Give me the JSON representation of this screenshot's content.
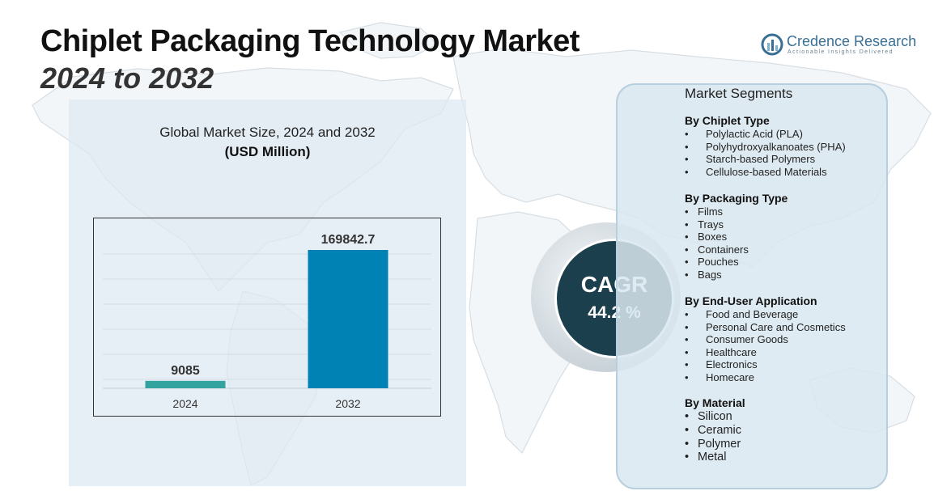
{
  "header": {
    "title": "Chiplet Packaging Technology Market",
    "subtitle": "2024 to 2032"
  },
  "logo": {
    "name": "Credence Research",
    "tagline": "Actionable Insights Delivered"
  },
  "chart_data": {
    "type": "bar",
    "title": "Global Market Size, 2024 and 2032",
    "unit_label": "(USD Million)",
    "categories": [
      "2024",
      "2032"
    ],
    "values": [
      9085,
      169842.7
    ],
    "value_labels": [
      "9085",
      "169842.7"
    ],
    "bar_colors": [
      "#33a3a0",
      "#0082b4"
    ],
    "grid": true,
    "xlabel": "",
    "ylabel": ""
  },
  "cagr": {
    "label": "CAGR",
    "value": "44.2 %"
  },
  "segments": {
    "title": "Market Segments",
    "groups": [
      {
        "heading": "By Chiplet Type",
        "items": [
          "Polylactic Acid (PLA)",
          "Polyhydroxyalkanoates (PHA)",
          "Starch-based Polymers",
          "Cellulose-based Materials"
        ]
      },
      {
        "heading": "By Packaging Type",
        "items": [
          "Films",
          "Trays",
          "Boxes",
          "Containers",
          "Pouches",
          "Bags"
        ]
      },
      {
        "heading": "By End-User Application",
        "items": [
          "Food and Beverage",
          "Personal Care and Cosmetics",
          "Consumer Goods",
          "Healthcare",
          "Electronics",
          "Homecare"
        ]
      },
      {
        "heading": "By Material",
        "items": [
          "Silicon",
          "Ceramic",
          "Polymer",
          "Metal"
        ]
      }
    ]
  },
  "colors": {
    "chart_panel": "#dee9f2",
    "cagr_circle": "#1c3f4e",
    "segment_panel": "#d9e7f0",
    "logo": "#3a6f95"
  }
}
